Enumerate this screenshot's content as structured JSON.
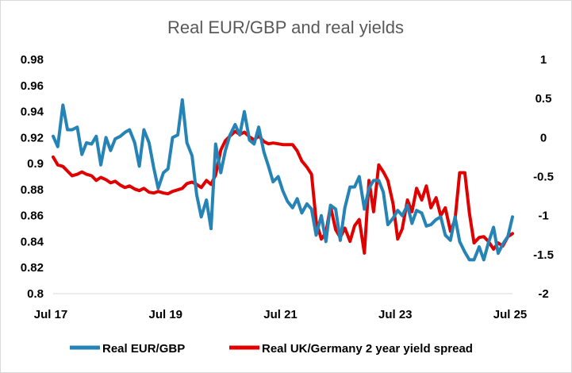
{
  "chart_data": {
    "type": "line",
    "title": "Real EUR/GBP and real yields",
    "x_tick_labels": [
      "Jul 17",
      "Jul 19",
      "Jul 21",
      "Jul 23",
      "Jul 25"
    ],
    "x_tick_positions": [
      2017.5,
      2019.5,
      2021.5,
      2023.5,
      2025.5
    ],
    "xlim": [
      2017.5,
      2025.5
    ],
    "y_left": {
      "ylim": [
        0.8,
        0.98
      ],
      "ticks": [
        0.8,
        0.82,
        0.84,
        0.86,
        0.88,
        0.9,
        0.92,
        0.94,
        0.96,
        0.98
      ],
      "tick_labels": [
        "0.8",
        "0.82",
        "0.84",
        "0.86",
        "0.88",
        "0.9",
        "0.92",
        "0.94",
        "0.96",
        "0.98"
      ]
    },
    "y_right": {
      "ylim": [
        -2,
        1
      ],
      "ticks": [
        -2,
        -1.5,
        -1,
        -0.5,
        0,
        0.5,
        1
      ],
      "tick_labels": [
        "-2",
        "-1.5",
        "-1",
        "-0.5",
        "0",
        "0.5",
        "1"
      ]
    },
    "grid": false,
    "legend_position": "bottom",
    "series": [
      {
        "name": "Real EUR/GBP",
        "axis": "left",
        "color": "#2683B6",
        "x": [
          2017.5,
          2017.58,
          2017.67,
          2017.75,
          2017.83,
          2017.92,
          2018.0,
          2018.08,
          2018.17,
          2018.25,
          2018.33,
          2018.42,
          2018.5,
          2018.58,
          2018.67,
          2018.75,
          2018.83,
          2018.92,
          2019.0,
          2019.08,
          2019.17,
          2019.25,
          2019.33,
          2019.42,
          2019.5,
          2019.58,
          2019.67,
          2019.75,
          2019.83,
          2019.92,
          2020.0,
          2020.08,
          2020.17,
          2020.25,
          2020.33,
          2020.42,
          2020.5,
          2020.58,
          2020.67,
          2020.75,
          2020.83,
          2020.92,
          2021.0,
          2021.08,
          2021.17,
          2021.25,
          2021.33,
          2021.42,
          2021.5,
          2021.58,
          2021.67,
          2021.75,
          2021.83,
          2021.92,
          2022.0,
          2022.08,
          2022.17,
          2022.25,
          2022.33,
          2022.42,
          2022.5,
          2022.58,
          2022.67,
          2022.75,
          2022.83,
          2022.92,
          2023.0,
          2023.08,
          2023.17,
          2023.25,
          2023.33,
          2023.42,
          2023.5,
          2023.58,
          2023.67,
          2023.75,
          2023.83,
          2023.92,
          2024.0,
          2024.08,
          2024.17,
          2024.25,
          2024.33,
          2024.42,
          2024.5,
          2024.58,
          2024.67,
          2024.75,
          2024.83,
          2024.92,
          2025.0,
          2025.08,
          2025.17,
          2025.25,
          2025.33,
          2025.42,
          2025.5
        ],
        "values": [
          0.921,
          0.913,
          0.945,
          0.926,
          0.926,
          0.928,
          0.907,
          0.916,
          0.915,
          0.921,
          0.899,
          0.92,
          0.91,
          0.919,
          0.921,
          0.924,
          0.926,
          0.916,
          0.898,
          0.926,
          0.916,
          0.897,
          0.881,
          0.893,
          0.896,
          0.92,
          0.922,
          0.949,
          0.916,
          0.906,
          0.876,
          0.859,
          0.872,
          0.85,
          0.915,
          0.893,
          0.91,
          0.922,
          0.93,
          0.922,
          0.94,
          0.918,
          0.915,
          0.928,
          0.909,
          0.898,
          0.886,
          0.89,
          0.879,
          0.871,
          0.866,
          0.873,
          0.862,
          0.869,
          0.865,
          0.845,
          0.86,
          0.84,
          0.868,
          0.865,
          0.841,
          0.866,
          0.882,
          0.882,
          0.89,
          0.865,
          0.881,
          0.887,
          0.887,
          0.878,
          0.853,
          0.858,
          0.864,
          0.86,
          0.868,
          0.854,
          0.864,
          0.862,
          0.852,
          0.853,
          0.857,
          0.859,
          0.845,
          0.841,
          0.859,
          0.84,
          0.832,
          0.826,
          0.826,
          0.836,
          0.826,
          0.839,
          0.851,
          0.831,
          0.838,
          0.844,
          0.859
        ]
      },
      {
        "name": "Real UK/Germany 2 year yield spread",
        "axis": "right",
        "color": "#E00000",
        "x": [
          2017.5,
          2017.58,
          2017.67,
          2017.75,
          2017.83,
          2017.92,
          2018.0,
          2018.08,
          2018.17,
          2018.25,
          2018.33,
          2018.42,
          2018.5,
          2018.58,
          2018.67,
          2018.75,
          2018.83,
          2018.92,
          2019.0,
          2019.08,
          2019.17,
          2019.25,
          2019.33,
          2019.42,
          2019.5,
          2019.58,
          2019.67,
          2019.75,
          2019.83,
          2019.92,
          2020.0,
          2020.08,
          2020.17,
          2020.25,
          2020.33,
          2020.42,
          2020.5,
          2020.58,
          2020.67,
          2020.75,
          2020.83,
          2020.92,
          2021.0,
          2021.08,
          2021.17,
          2021.25,
          2021.33,
          2021.42,
          2021.5,
          2021.58,
          2021.67,
          2021.75,
          2021.83,
          2021.92,
          2022.0,
          2022.08,
          2022.17,
          2022.25,
          2022.33,
          2022.42,
          2022.5,
          2022.58,
          2022.67,
          2022.75,
          2022.83,
          2022.92,
          2023.0,
          2023.08,
          2023.17,
          2023.25,
          2023.33,
          2023.42,
          2023.5,
          2023.58,
          2023.67,
          2023.75,
          2023.83,
          2023.92,
          2024.0,
          2024.08,
          2024.17,
          2024.25,
          2024.33,
          2024.42,
          2024.5,
          2024.58,
          2024.67,
          2024.75,
          2024.83,
          2024.92,
          2025.0,
          2025.08,
          2025.17,
          2025.25,
          2025.33,
          2025.42,
          2025.5
        ],
        "values": [
          -0.25,
          -0.35,
          -0.37,
          -0.43,
          -0.49,
          -0.47,
          -0.44,
          -0.47,
          -0.49,
          -0.55,
          -0.51,
          -0.54,
          -0.58,
          -0.56,
          -0.61,
          -0.64,
          -0.62,
          -0.66,
          -0.68,
          -0.65,
          -0.7,
          -0.71,
          -0.69,
          -0.71,
          -0.72,
          -0.69,
          -0.67,
          -0.65,
          -0.59,
          -0.57,
          -0.6,
          -0.64,
          -0.55,
          -0.6,
          -0.48,
          -0.16,
          -0.04,
          0.02,
          0.08,
          0.04,
          0.07,
          0.01,
          -0.03,
          0.02,
          -0.05,
          -0.08,
          -0.07,
          -0.08,
          -0.09,
          -0.09,
          -0.09,
          -0.17,
          -0.3,
          -0.38,
          -0.47,
          -1.07,
          -1.3,
          -1.22,
          -0.88,
          -1.18,
          -1.28,
          -1.16,
          -1.33,
          -1.13,
          -1.05,
          -1.48,
          -0.55,
          -0.95,
          -0.35,
          -0.44,
          -0.55,
          -0.85,
          -1.3,
          -1.17,
          -0.8,
          -0.95,
          -0.65,
          -0.8,
          -0.62,
          -0.9,
          -0.77,
          -1.0,
          -0.9,
          -1.2,
          -1.05,
          -0.45,
          -0.45,
          -0.97,
          -1.35,
          -1.28,
          -1.27,
          -1.33,
          -1.43,
          -1.35,
          -1.39,
          -1.27,
          -1.23
        ]
      }
    ]
  }
}
